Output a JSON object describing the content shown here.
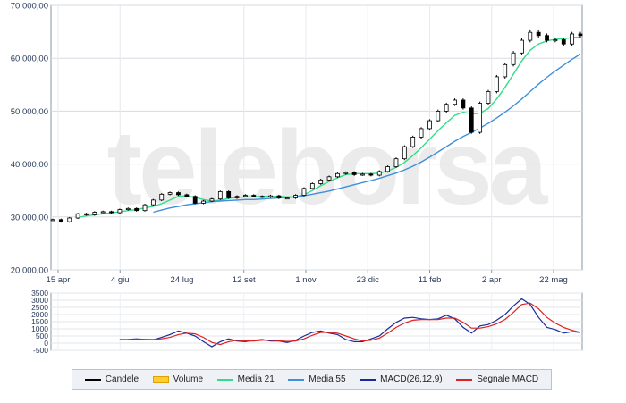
{
  "chart_data": [
    {
      "type": "line",
      "title": "",
      "xlabel": "",
      "ylabel": "",
      "ylim": [
        20000,
        70000
      ],
      "yticks": [
        "70.000,00",
        "60.000,00",
        "50.000,00",
        "40.000,00",
        "30.000,00",
        "20.000,00"
      ],
      "ytick_values": [
        70000,
        60000,
        50000,
        40000,
        30000,
        20000
      ],
      "xticks": [
        "15 apr",
        "4 giu",
        "24 lug",
        "12 set",
        "1 nov",
        "23 dic",
        "11 feb",
        "2 apr",
        "22 mag"
      ],
      "grid": true,
      "watermark": "teleborsa",
      "series": [
        {
          "name": "Candele",
          "color": "#000000",
          "values": [
            29500,
            29100,
            29800,
            30600,
            30400,
            30900,
            31000,
            30800,
            31400,
            31600,
            31200,
            32300,
            33200,
            34300,
            34600,
            34200,
            33900,
            32600,
            33000,
            33400,
            34800,
            33600,
            33900,
            34100,
            33900,
            33800,
            34000,
            33600,
            33600,
            34100,
            35400,
            36300,
            37000,
            37600,
            38200,
            38400,
            38000,
            38100,
            37900,
            38600,
            39500,
            41000,
            43300,
            45100,
            46700,
            48200,
            50000,
            51300,
            52100,
            50600,
            46000,
            51500,
            53700,
            56500,
            58800,
            61000,
            63400,
            64900,
            64300,
            63400,
            63500,
            62700,
            64600,
            64300
          ]
        },
        {
          "name": "Media 21",
          "color": "#33dd88",
          "values": [
            null,
            null,
            null,
            29900,
            30200,
            30400,
            30600,
            30800,
            31000,
            31200,
            31400,
            31700,
            32000,
            32500,
            33200,
            33900,
            34000,
            33700,
            33300,
            33000,
            33200,
            33500,
            33700,
            33800,
            33800,
            33900,
            33900,
            33900,
            33800,
            33800,
            34200,
            35000,
            35900,
            36700,
            37400,
            38000,
            38200,
            38200,
            38200,
            38300,
            38700,
            39400,
            40300,
            41600,
            43100,
            44700,
            46300,
            47800,
            49200,
            49800,
            49500,
            49600,
            50500,
            52300,
            54500,
            57000,
            59500,
            61500,
            62700,
            63300,
            63600,
            63700,
            63900,
            64000
          ]
        },
        {
          "name": "Media 55",
          "color": "#3f8fdd",
          "values": [
            null,
            null,
            null,
            null,
            null,
            null,
            null,
            null,
            null,
            null,
            null,
            null,
            30900,
            31300,
            31700,
            32000,
            32300,
            32500,
            32700,
            32900,
            33000,
            33100,
            33200,
            33300,
            33300,
            33400,
            33500,
            33600,
            33700,
            33800,
            34000,
            34300,
            34600,
            34900,
            35300,
            35700,
            36100,
            36500,
            36900,
            37300,
            37800,
            38300,
            38900,
            39600,
            40400,
            41300,
            42300,
            43300,
            44300,
            45200,
            46000,
            46800,
            47700,
            48700,
            49800,
            51000,
            52300,
            53700,
            55100,
            56400,
            57600,
            58700,
            59800,
            60800
          ]
        }
      ]
    },
    {
      "type": "line",
      "title": "",
      "ylim": [
        -500,
        3500
      ],
      "yticks": [
        "3500",
        "3000",
        "2500",
        "2000",
        "1500",
        "1000",
        "500",
        "0",
        "-500"
      ],
      "ytick_values": [
        3500,
        3000,
        2500,
        2000,
        1500,
        1000,
        500,
        0,
        -500
      ],
      "grid": true,
      "series": [
        {
          "name": "MACD(26,12,9)",
          "color": "#1a2a99",
          "values": [
            null,
            null,
            null,
            null,
            null,
            null,
            null,
            null,
            250,
            260,
            300,
            250,
            230,
            400,
            600,
            850,
            700,
            500,
            100,
            -250,
            100,
            300,
            150,
            100,
            200,
            250,
            150,
            150,
            50,
            200,
            500,
            750,
            850,
            700,
            600,
            250,
            100,
            100,
            300,
            500,
            1000,
            1450,
            1750,
            1800,
            1700,
            1650,
            1700,
            1950,
            1700,
            1100,
            700,
            1200,
            1300,
            1600,
            2000,
            2600,
            3100,
            2700,
            1800,
            1100,
            950,
            700,
            800,
            750
          ]
        },
        {
          "name": "Segnale MACD",
          "color": "#dd2222",
          "values": [
            null,
            null,
            null,
            null,
            null,
            null,
            null,
            null,
            250,
            250,
            270,
            270,
            260,
            300,
            400,
            600,
            700,
            650,
            400,
            50,
            -100,
            100,
            200,
            150,
            150,
            200,
            200,
            170,
            120,
            150,
            300,
            550,
            750,
            750,
            700,
            500,
            300,
            150,
            200,
            350,
            700,
            1100,
            1400,
            1600,
            1650,
            1650,
            1650,
            1750,
            1750,
            1450,
            1050,
            1050,
            1150,
            1350,
            1650,
            2150,
            2700,
            2800,
            2400,
            1800,
            1400,
            1100,
            900,
            750
          ]
        }
      ]
    }
  ],
  "legend": [
    {
      "label": "Candele",
      "color": "#000000",
      "style": "line"
    },
    {
      "label": "Volume",
      "color": "#ffcc33",
      "style": "box"
    },
    {
      "label": "Media 21",
      "color": "#33dd88",
      "style": "line"
    },
    {
      "label": "Media 55",
      "color": "#3f8fdd",
      "style": "line"
    },
    {
      "label": "MACD(26,12,9)",
      "color": "#1a2a99",
      "style": "line"
    },
    {
      "label": "Segnale MACD",
      "color": "#dd2222",
      "style": "line"
    }
  ]
}
